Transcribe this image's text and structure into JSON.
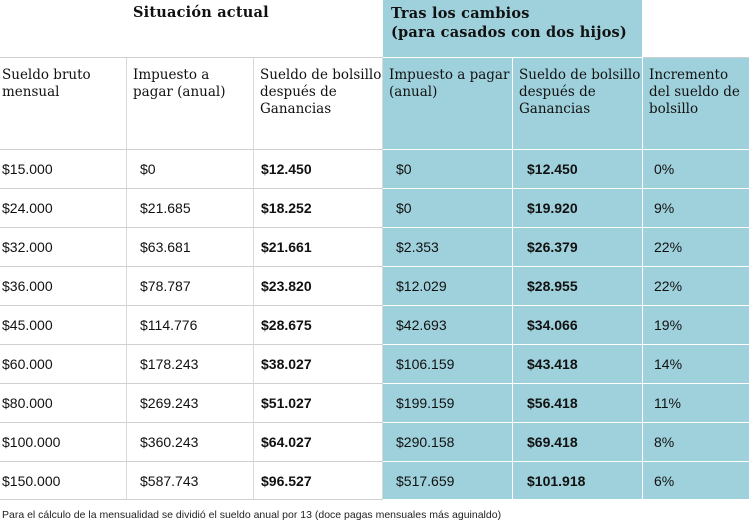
{
  "group_headers": {
    "current": "Situación actual",
    "after": "Tras los cambios\n(para casados con dos hijos)"
  },
  "columns": [
    "Sueldo bruto mensual",
    "Impuesto a pagar (anual)",
    "Sueldo de bolsillo después de Ganancias",
    "Impuesto a pagar (anual)",
    "Sueldo de bolsillo después de Ganancias",
    "Incremento del sueldo de bolsillo"
  ],
  "rows": [
    [
      "$15.000",
      "$0",
      "$12.450",
      "$0",
      "$12.450",
      "0%"
    ],
    [
      "$24.000",
      "$21.685",
      "$18.252",
      "$0",
      "$19.920",
      "9%"
    ],
    [
      "$32.000",
      "$63.681",
      "$21.661",
      "$2.353",
      "$26.379",
      "22%"
    ],
    [
      "$36.000",
      "$78.787",
      "$23.820",
      "$12.029",
      "$28.955",
      "22%"
    ],
    [
      "$45.000",
      "$114.776",
      "$28.675",
      "$42.693",
      "$34.066",
      "19%"
    ],
    [
      "$60.000",
      "$178.243",
      "$38.027",
      "$106.159",
      "$43.418",
      "14%"
    ],
    [
      "$80.000",
      "$269.243",
      "$51.027",
      "$199.159",
      "$56.418",
      "11%"
    ],
    [
      "$100.000",
      "$360.243",
      "$64.027",
      "$290.158",
      "$69.418",
      "8%"
    ],
    [
      "$150.000",
      "$587.743",
      "$96.527",
      "$517.659",
      "$101.918",
      "6%"
    ]
  ],
  "footnote": "Para el cálculo de la mensualidad se dividió el sueldo anual por 13 (doce pagas mensuales más aguinaldo)",
  "colors": {
    "highlight": "#9fd1dc",
    "background": "#ffffff",
    "text": "#111111"
  }
}
